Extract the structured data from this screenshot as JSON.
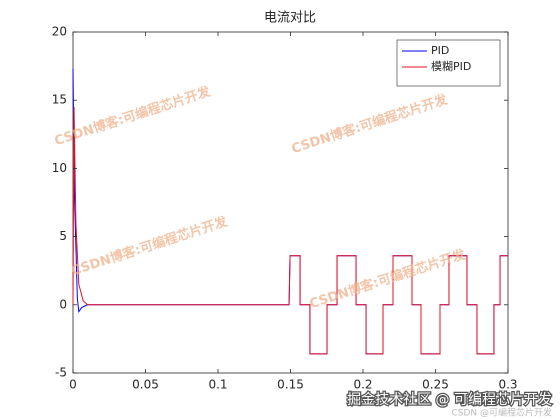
{
  "chart_data": {
    "type": "line",
    "title": "电流对比",
    "xlim": [
      0,
      0.3
    ],
    "xticks": [
      0,
      0.05,
      0.1,
      0.15,
      0.2,
      0.25,
      0.3
    ],
    "ylim": [
      -5,
      20
    ],
    "yticks": [
      -5,
      0,
      5,
      10,
      15,
      20
    ],
    "legend": "top-right",
    "series": [
      {
        "name": "PID",
        "color": "#0000ff",
        "x": [
          0,
          0.001,
          0.003,
          0.004,
          0.006,
          0.01,
          0.149,
          0.1497,
          0.1566,
          0.1566,
          0.1634,
          0.1634,
          0.1752,
          0.1752,
          0.1821,
          0.1821,
          0.1952,
          0.1952,
          0.2021,
          0.2021,
          0.2138,
          0.2138,
          0.2207,
          0.2207,
          0.2338,
          0.2338,
          0.24,
          0.24,
          0.2531,
          0.2531,
          0.2593,
          0.2593,
          0.2717,
          0.2717,
          0.2786,
          0.2786,
          0.2903,
          0.2903,
          0.2945,
          0.2945,
          0.3
        ],
        "values": [
          17.3,
          8,
          0.5,
          -0.5,
          -0.2,
          0,
          0,
          3.6,
          3.6,
          0,
          0,
          -3.6,
          -3.6,
          0,
          0,
          3.6,
          3.6,
          0,
          0,
          -3.6,
          -3.6,
          0,
          0,
          3.6,
          3.6,
          0,
          0,
          -3.6,
          -3.6,
          0,
          0,
          3.6,
          3.6,
          0,
          0,
          -3.6,
          -3.6,
          0,
          0,
          3.6,
          3.6
        ]
      },
      {
        "name": "模糊PID",
        "color": "#e8131f",
        "x": [
          0,
          0.0007,
          0.002,
          0.004,
          0.007,
          0.01,
          0.149,
          0.1497,
          0.1566,
          0.1566,
          0.1634,
          0.1634,
          0.1752,
          0.1752,
          0.1821,
          0.1821,
          0.1952,
          0.1952,
          0.2021,
          0.2021,
          0.2138,
          0.2138,
          0.2207,
          0.2207,
          0.2338,
          0.2338,
          0.24,
          0.24,
          0.2531,
          0.2531,
          0.2593,
          0.2593,
          0.2717,
          0.2717,
          0.2786,
          0.2786,
          0.2903,
          0.2903,
          0.2945,
          0.2945,
          0.3
        ],
        "values": [
          0,
          14.5,
          6,
          1.5,
          0.3,
          0,
          0,
          3.6,
          3.6,
          0,
          0,
          -3.6,
          -3.6,
          0,
          0,
          3.6,
          3.6,
          0,
          0,
          -3.6,
          -3.6,
          0,
          0,
          3.6,
          3.6,
          0,
          0,
          -3.6,
          -3.6,
          0,
          0,
          3.6,
          3.6,
          0,
          0,
          -3.6,
          -3.6,
          0,
          0,
          3.6,
          3.6
        ]
      }
    ]
  },
  "watermarks": [
    "CSDN博客:可编程芯片开发",
    "CSDN博客:可编程芯片开发",
    "CSDN博客:可编程芯片开发",
    "CSDN博客:可编程芯片开发"
  ],
  "footer": "掘金技术社区 @ 可编程芯片开发",
  "footer_small": "CSDN @可编程芯片开发"
}
